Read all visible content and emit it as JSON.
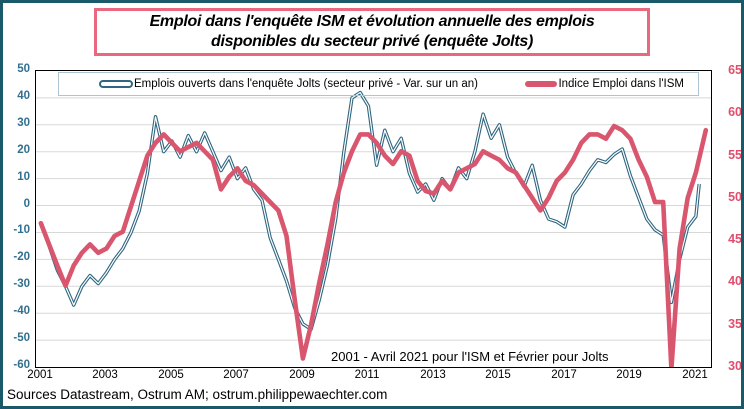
{
  "title": {
    "line1": "Emploi dans l'enquête ISM et évolution annuelle des emplois",
    "line2": "disponibles du secteur privé (enquête Jolts)"
  },
  "annotation": "2001 - Avril 2021 pour l'ISM  et Février pour Jolts",
  "footer": {
    "text": "Sources Datastream,  Ostrum AM; ostrum.philippewaechter.com"
  },
  "colors": {
    "outer_border": "#19596a",
    "title_border": "#e8697f",
    "jolts_blue": "#2f6680",
    "ism_red": "#d9566f",
    "left_axis_labels": "#31708f",
    "right_axis_labels": "#e14e6d",
    "grid": "#d8d8d8",
    "plot_border": "#000000"
  },
  "chart_data": {
    "type": "line",
    "title": "Emploi dans l'enquête ISM et évolution annuelle des emplois disponibles du secteur privé (enquête Jolts)",
    "grid": true,
    "legend_position": "top-inside",
    "x_axis": {
      "ticks": [
        2001,
        2003,
        2005,
        2007,
        2009,
        2011,
        2013,
        2015,
        2017,
        2019,
        2021
      ],
      "range": [
        2000.85,
        2021.46
      ]
    },
    "left_axis": {
      "min": -60,
      "max": 50,
      "step": 10,
      "label_color": "#31708f"
    },
    "right_axis": {
      "min": 30,
      "max": 65,
      "step": 5,
      "label_color": "#e14e6d"
    },
    "series": [
      {
        "name": "Emplois ouverts dans l'enquête Jolts (secteur privé - Var. sur un an)",
        "axis": "left",
        "color": "#2f6680",
        "style": "double-line",
        "x": [
          2001.0,
          2001.25,
          2001.5,
          2001.75,
          2002.0,
          2002.25,
          2002.5,
          2002.75,
          2003.0,
          2003.25,
          2003.5,
          2003.75,
          2004.0,
          2004.25,
          2004.5,
          2004.75,
          2005.0,
          2005.25,
          2005.5,
          2005.75,
          2006.0,
          2006.25,
          2006.5,
          2006.75,
          2007.0,
          2007.25,
          2007.5,
          2007.75,
          2008.0,
          2008.25,
          2008.5,
          2008.75,
          2009.0,
          2009.25,
          2009.5,
          2009.75,
          2010.0,
          2010.25,
          2010.5,
          2010.75,
          2011.0,
          2011.25,
          2011.5,
          2011.75,
          2012.0,
          2012.25,
          2012.5,
          2012.75,
          2013.0,
          2013.25,
          2013.5,
          2013.75,
          2014.0,
          2014.25,
          2014.5,
          2014.75,
          2015.0,
          2015.25,
          2015.5,
          2015.75,
          2016.0,
          2016.25,
          2016.5,
          2016.75,
          2017.0,
          2017.25,
          2017.5,
          2017.75,
          2018.0,
          2018.25,
          2018.5,
          2018.75,
          2019.0,
          2019.25,
          2019.5,
          2019.75,
          2020.0,
          2020.25,
          2020.5,
          2020.75,
          2021.0,
          2021.1
        ],
        "values": [
          -7,
          -15,
          -24,
          -30,
          -37,
          -30,
          -26,
          -29,
          -25,
          -20,
          -16,
          -10,
          -2,
          12,
          33,
          20,
          24,
          18,
          26,
          20,
          27,
          20,
          13,
          18,
          10,
          14,
          6,
          2,
          -12,
          -20,
          -28,
          -38,
          -44,
          -46,
          -35,
          -22,
          -5,
          20,
          40,
          42,
          37,
          15,
          28,
          20,
          25,
          12,
          5,
          8,
          2,
          10,
          6,
          14,
          10,
          20,
          34,
          25,
          30,
          18,
          12,
          7,
          15,
          2,
          -5,
          -6,
          -8,
          4,
          8,
          13,
          17,
          16,
          19,
          21,
          11,
          3,
          -5,
          -9,
          -11,
          -36,
          -20,
          -8,
          -4,
          8
        ]
      },
      {
        "name": "Indice Emploi dans l'ISM",
        "axis": "right",
        "color": "#d9566f",
        "style": "thick-line",
        "x": [
          2001.0,
          2001.25,
          2001.5,
          2001.75,
          2002.0,
          2002.25,
          2002.5,
          2002.75,
          2003.0,
          2003.25,
          2003.5,
          2003.75,
          2004.0,
          2004.25,
          2004.5,
          2004.75,
          2005.0,
          2005.25,
          2005.5,
          2005.75,
          2006.0,
          2006.25,
          2006.5,
          2006.75,
          2007.0,
          2007.25,
          2007.5,
          2007.75,
          2008.0,
          2008.25,
          2008.5,
          2008.75,
          2009.0,
          2009.25,
          2009.5,
          2009.75,
          2010.0,
          2010.25,
          2010.5,
          2010.75,
          2011.0,
          2011.25,
          2011.5,
          2011.75,
          2012.0,
          2012.25,
          2012.5,
          2012.75,
          2013.0,
          2013.25,
          2013.5,
          2013.75,
          2014.0,
          2014.25,
          2014.5,
          2014.75,
          2015.0,
          2015.25,
          2015.5,
          2015.75,
          2016.0,
          2016.25,
          2016.5,
          2016.75,
          2017.0,
          2017.25,
          2017.5,
          2017.75,
          2018.0,
          2018.25,
          2018.5,
          2018.75,
          2019.0,
          2019.25,
          2019.5,
          2019.75,
          2020.0,
          2020.25,
          2020.5,
          2020.75,
          2021.0,
          2021.3
        ],
        "values": [
          47,
          44.5,
          42,
          39.6,
          42,
          43.5,
          44.5,
          43.5,
          44,
          45.5,
          46,
          49,
          52,
          55,
          56.5,
          57.5,
          56.5,
          55.5,
          56,
          56.5,
          55.5,
          54.5,
          51,
          52.5,
          53.5,
          52,
          51.5,
          50.5,
          49.5,
          48.5,
          45.5,
          38,
          31,
          35,
          40,
          44.5,
          49.5,
          53,
          55.5,
          57.5,
          57.5,
          56.5,
          55,
          54,
          55.5,
          55,
          52,
          50.8,
          50.5,
          52,
          51,
          53,
          53.5,
          54,
          55.5,
          55,
          54.5,
          53.5,
          53,
          51.5,
          50,
          48.5,
          50,
          52,
          53,
          54.5,
          56.5,
          57.5,
          57.5,
          57,
          58.5,
          58,
          57,
          54.5,
          52.5,
          49.5,
          49.5,
          29.8,
          44,
          50,
          53,
          58
        ]
      }
    ]
  }
}
